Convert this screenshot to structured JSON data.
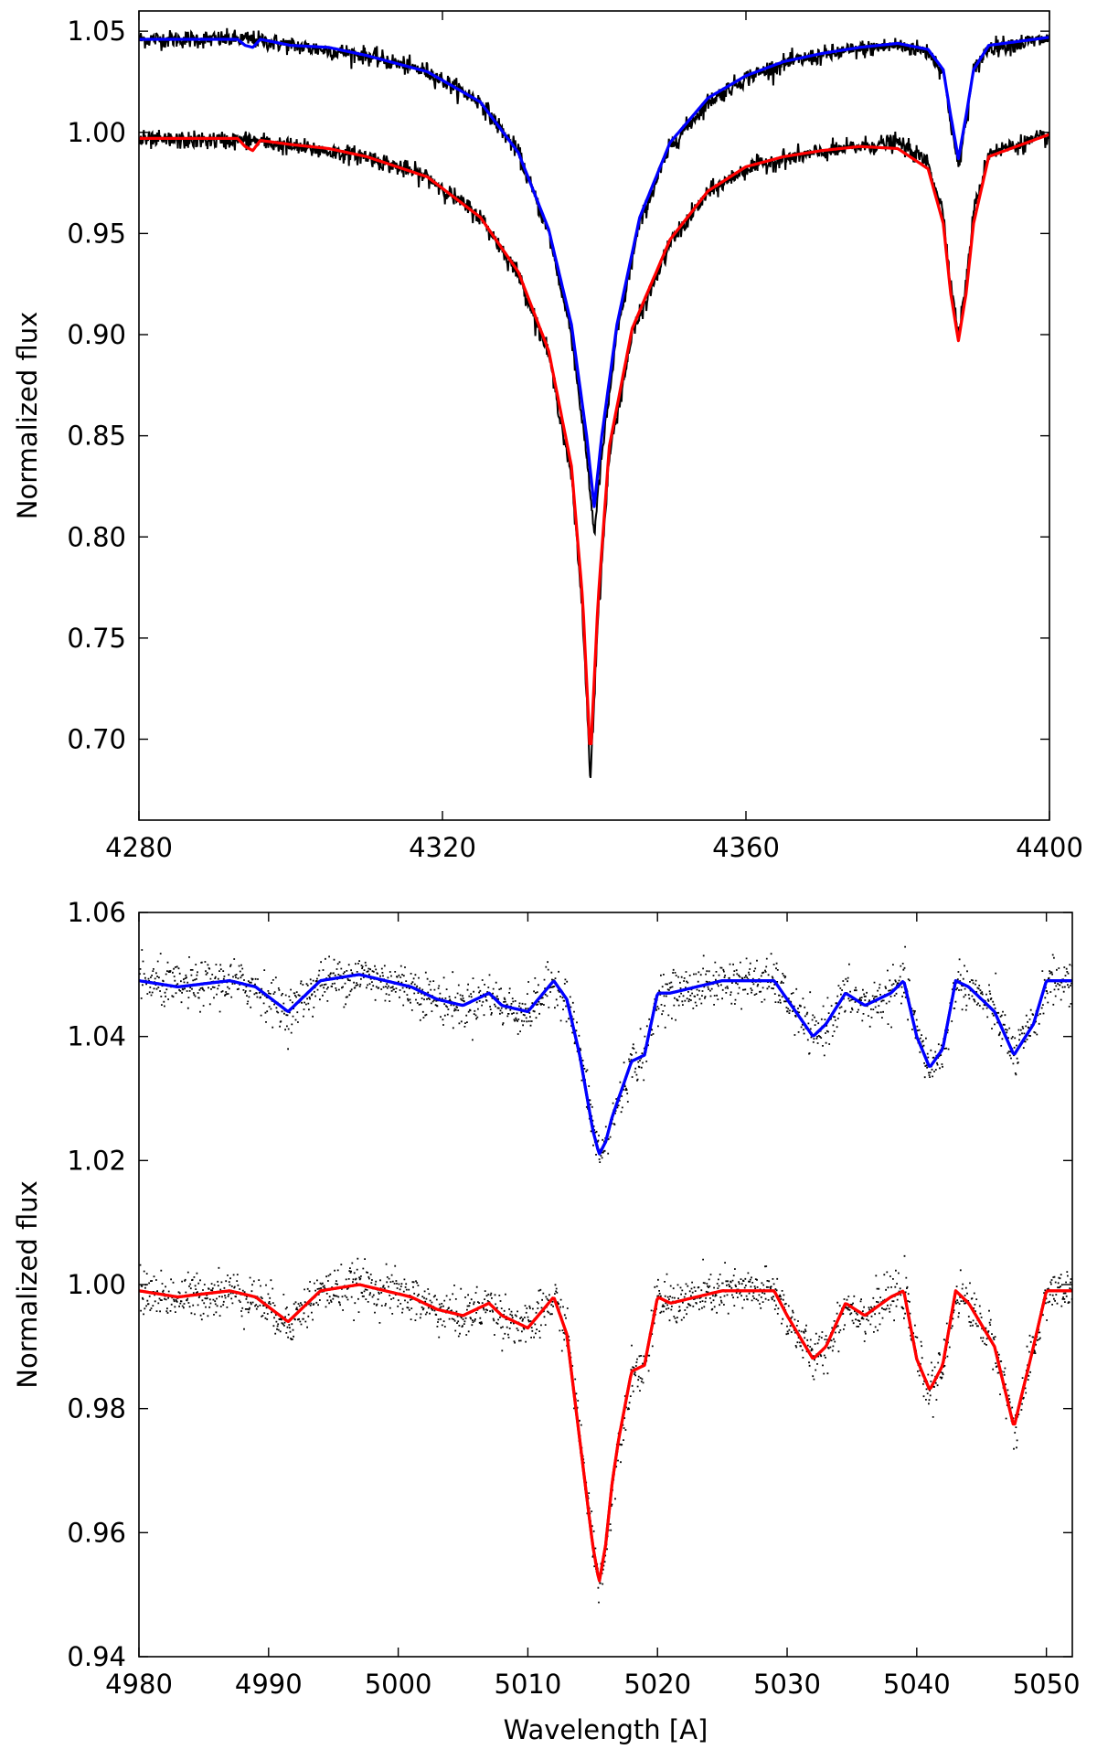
{
  "chart_data": [
    {
      "type": "line",
      "title": "",
      "xlabel": "",
      "ylabel": "Normalized flux",
      "xlim": [
        4280,
        4400
      ],
      "ylim": [
        0.66,
        1.06
      ],
      "xticks": [
        "4280",
        "4320",
        "4360",
        "4400"
      ],
      "yticks": [
        "0.70",
        "0.75",
        "0.80",
        "0.85",
        "0.90",
        "0.95",
        "1.00",
        "1.05"
      ],
      "xtick_values": [
        4280,
        4320,
        4360,
        4400
      ],
      "ytick_values": [
        0.7,
        0.75,
        0.8,
        0.85,
        0.9,
        0.95,
        1.0,
        1.05
      ],
      "series": [
        {
          "role": "observed",
          "color": "#000000",
          "style": "noisy-line",
          "x": [
            4280,
            4295,
            4300,
            4310,
            4318,
            4325,
            4330,
            4334,
            4337,
            4339,
            4340,
            4341,
            4343,
            4346,
            4350,
            4355,
            4360,
            4365,
            4370,
            4375,
            4380,
            4384,
            4386,
            4387,
            4388,
            4389,
            4390,
            4392,
            4400
          ],
          "y": [
            1.046,
            1.046,
            1.043,
            1.038,
            1.03,
            1.015,
            0.99,
            0.95,
            0.9,
            0.84,
            0.802,
            0.84,
            0.9,
            0.955,
            0.993,
            1.015,
            1.027,
            1.034,
            1.038,
            1.041,
            1.043,
            1.04,
            1.03,
            1.005,
            0.982,
            1.005,
            1.03,
            1.042,
            1.046
          ]
        },
        {
          "role": "model",
          "color": "#0000ff",
          "style": "line",
          "x": [
            4280,
            4293,
            4294,
            4295,
            4296,
            4300,
            4305,
            4310,
            4318,
            4325,
            4330,
            4334,
            4337,
            4339,
            4340,
            4341,
            4343,
            4346,
            4350,
            4355,
            4360,
            4365,
            4370,
            4375,
            4380,
            4384,
            4386,
            4387,
            4388,
            4389,
            4390,
            4392,
            4400
          ],
          "y": [
            1.046,
            1.046,
            1.043,
            1.042,
            1.046,
            1.043,
            1.042,
            1.038,
            1.03,
            1.015,
            0.99,
            0.952,
            0.905,
            0.85,
            0.815,
            0.85,
            0.905,
            0.958,
            0.995,
            1.017,
            1.028,
            1.035,
            1.039,
            1.042,
            1.044,
            1.041,
            1.031,
            1.008,
            0.987,
            1.008,
            1.031,
            1.043,
            1.047
          ]
        },
        {
          "role": "observed",
          "color": "#000000",
          "style": "noisy-line",
          "x": [
            4280,
            4295,
            4300,
            4310,
            4318,
            4325,
            4330,
            4334,
            4337,
            4338.5,
            4339.5,
            4340.5,
            4342,
            4345,
            4350,
            4355,
            4360,
            4365,
            4370,
            4375,
            4380,
            4384,
            4386,
            4387,
            4388,
            4389,
            4390,
            4392,
            4400
          ],
          "y": [
            0.996,
            0.996,
            0.993,
            0.988,
            0.978,
            0.958,
            0.93,
            0.89,
            0.83,
            0.76,
            0.68,
            0.76,
            0.84,
            0.9,
            0.945,
            0.97,
            0.982,
            0.987,
            0.99,
            0.993,
            0.995,
            0.985,
            0.96,
            0.925,
            0.9,
            0.925,
            0.96,
            0.99,
            0.998
          ]
        },
        {
          "role": "model",
          "color": "#ff0000",
          "style": "line",
          "x": [
            4280,
            4293,
            4294,
            4295,
            4296,
            4300,
            4305,
            4310,
            4318,
            4325,
            4330,
            4334,
            4337,
            4338.5,
            4339.5,
            4340.5,
            4342,
            4345,
            4350,
            4355,
            4360,
            4365,
            4370,
            4375,
            4380,
            4384,
            4386,
            4387,
            4388,
            4389,
            4390,
            4392,
            4400
          ],
          "y": [
            0.997,
            0.997,
            0.993,
            0.991,
            0.996,
            0.994,
            0.992,
            0.988,
            0.978,
            0.958,
            0.931,
            0.892,
            0.835,
            0.768,
            0.69,
            0.768,
            0.845,
            0.903,
            0.947,
            0.971,
            0.983,
            0.988,
            0.991,
            0.993,
            0.992,
            0.982,
            0.955,
            0.92,
            0.897,
            0.92,
            0.955,
            0.988,
            0.999
          ]
        }
      ]
    },
    {
      "type": "line",
      "title": "",
      "xlabel": "Wavelength [A]",
      "ylabel": "Normalized flux",
      "xlim": [
        4980,
        5052
      ],
      "ylim": [
        0.94,
        1.06
      ],
      "xticks": [
        "4980",
        "4990",
        "5000",
        "5010",
        "5020",
        "5030",
        "5040",
        "5050"
      ],
      "yticks": [
        "0.94",
        "0.96",
        "0.98",
        "1.00",
        "1.02",
        "1.04",
        "1.06"
      ],
      "xtick_values": [
        4980,
        4990,
        5000,
        5010,
        5020,
        5030,
        5040,
        5050
      ],
      "ytick_values": [
        0.94,
        0.96,
        0.98,
        1.0,
        1.02,
        1.04,
        1.06
      ],
      "series": [
        {
          "role": "model",
          "color": "#0000ff",
          "style": "line",
          "x": [
            4980,
            4983,
            4987,
            4989,
            4991.5,
            4994,
            4997,
            5001,
            5003,
            5005,
            5007,
            5008,
            5010,
            5012,
            5013,
            5014,
            5015,
            5015.5,
            5016,
            5016.5,
            5017,
            5018,
            5019,
            5020,
            5021,
            5025,
            5029,
            5030,
            5032,
            5033,
            5034.5,
            5036,
            5038,
            5039,
            5040,
            5041,
            5042,
            5043,
            5044,
            5046,
            5047.5,
            5049,
            5050,
            5052
          ],
          "y": [
            1.049,
            1.048,
            1.049,
            1.048,
            1.044,
            1.049,
            1.05,
            1.048,
            1.046,
            1.045,
            1.047,
            1.045,
            1.044,
            1.049,
            1.046,
            1.037,
            1.025,
            1.021,
            1.023,
            1.027,
            1.03,
            1.036,
            1.037,
            1.047,
            1.047,
            1.049,
            1.049,
            1.046,
            1.04,
            1.042,
            1.047,
            1.045,
            1.047,
            1.049,
            1.04,
            1.035,
            1.038,
            1.049,
            1.048,
            1.044,
            1.037,
            1.042,
            1.049,
            1.049
          ]
        },
        {
          "role": "model",
          "color": "#ff0000",
          "style": "line",
          "x": [
            4980,
            4983,
            4987,
            4989,
            4991.5,
            4994,
            4997,
            5001,
            5003,
            5005,
            5007,
            5008,
            5010,
            5012,
            5013,
            5014,
            5015,
            5015.5,
            5016,
            5016.5,
            5017,
            5018,
            5019,
            5020,
            5021,
            5025,
            5029,
            5030,
            5032,
            5033,
            5034.5,
            5036,
            5038,
            5039,
            5040,
            5041,
            5042,
            5043,
            5044,
            5046,
            5047.5,
            5049,
            5050,
            5052
          ],
          "y": [
            0.999,
            0.998,
            0.999,
            0.998,
            0.994,
            0.999,
            1.0,
            0.998,
            0.996,
            0.995,
            0.997,
            0.995,
            0.993,
            0.998,
            0.992,
            0.975,
            0.958,
            0.952,
            0.958,
            0.968,
            0.975,
            0.986,
            0.987,
            0.998,
            0.997,
            0.999,
            0.999,
            0.995,
            0.988,
            0.99,
            0.997,
            0.995,
            0.998,
            0.999,
            0.988,
            0.983,
            0.987,
            0.999,
            0.997,
            0.99,
            0.977,
            0.99,
            0.999,
            0.999
          ]
        }
      ]
    }
  ]
}
